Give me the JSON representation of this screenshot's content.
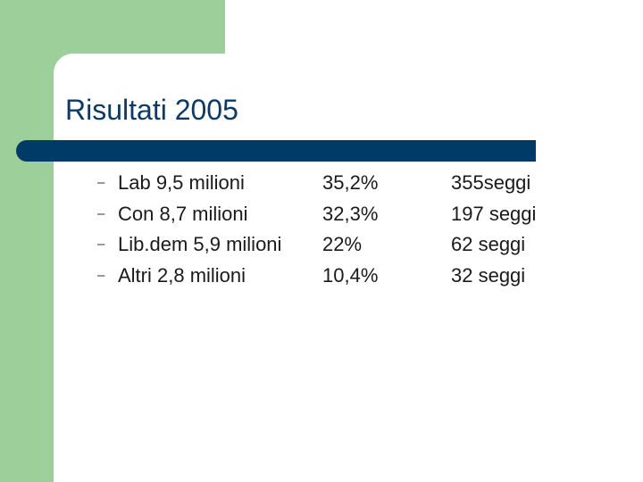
{
  "slide": {
    "title": "Risultati 2005",
    "bullet_glyph": "–",
    "rows": [
      {
        "label": "Lab 9,5 milioni",
        "percent": "35,2%",
        "seats": "355seggi"
      },
      {
        "label": "Con 8,7 milioni",
        "percent": "32,3%",
        "seats": "197 seggi"
      },
      {
        "label": "Lib.dem 5,9 milioni",
        "percent": "22%",
        "seats": "62 seggi"
      },
      {
        "label": "Altri 2,8 milioni",
        "percent": "10,4%",
        "seats": "32 seggi"
      }
    ]
  },
  "colors": {
    "accent_green": "#9dcf9b",
    "title_bar": "#003a66",
    "title_text": "#0d3a64"
  }
}
